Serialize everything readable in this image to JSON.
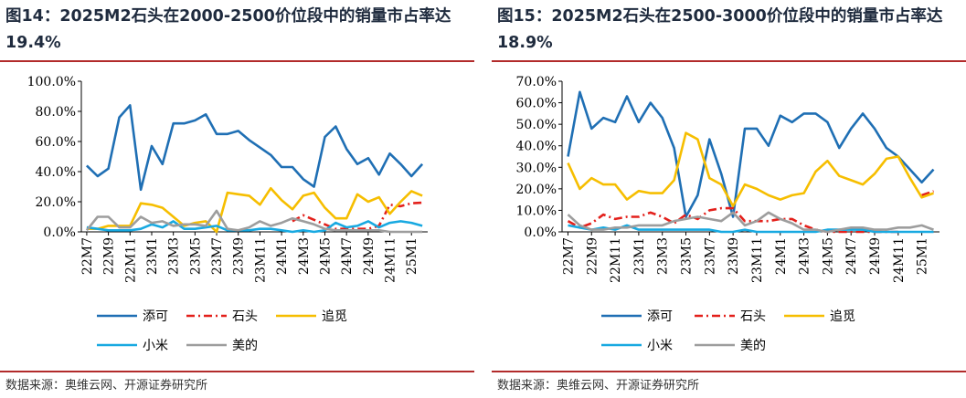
{
  "panels": [
    {
      "title": "图14：2025M2石头在2000-2500价位段中的销量市占率达 19.4%",
      "source": "数据来源：奥维云网、开源证券研究所"
    },
    {
      "title": "图15：2025M2石头在2500-3000价位段中的销量市占率达 18.9%",
      "source": "数据来源：奥维云网、开源证券研究所"
    }
  ],
  "chart_data": [
    {
      "type": "line",
      "ylim": [
        0,
        100
      ],
      "yticks": [
        "0.0%",
        "20.0%",
        "40.0%",
        "60.0%",
        "80.0%",
        "100.0%"
      ],
      "ytick_values": [
        0,
        20,
        40,
        60,
        80,
        100
      ],
      "x_tick_labels": [
        "22M7",
        "22M9",
        "22M11",
        "23M1",
        "23M3",
        "23M5",
        "23M7",
        "23M9",
        "23M11",
        "24M1",
        "24M3",
        "24M5",
        "24M7",
        "24M9",
        "24M11",
        "25M1"
      ],
      "n_points": 32,
      "series": [
        {
          "name": "添可",
          "color": "#1f6fb4",
          "dash": "solid",
          "values": [
            44,
            37,
            42,
            76,
            84,
            28,
            57,
            45,
            72,
            72,
            74,
            78,
            65,
            65,
            67,
            61,
            56,
            51,
            43,
            43,
            35,
            30,
            63,
            70,
            55,
            45,
            49,
            38,
            52,
            45,
            37,
            45
          ]
        },
        {
          "name": "石头",
          "color": "#e3201b",
          "dash": "dashdot",
          "values": [
            null,
            null,
            null,
            null,
            null,
            null,
            null,
            null,
            null,
            null,
            null,
            null,
            null,
            null,
            null,
            null,
            null,
            null,
            null,
            7,
            11,
            8,
            5,
            2,
            2,
            2,
            2,
            4,
            18,
            17,
            19,
            19.4
          ]
        },
        {
          "name": "追觅",
          "color": "#f6be00",
          "dash": "solid",
          "values": [
            2,
            2,
            4,
            4,
            4,
            19,
            18,
            16,
            10,
            4,
            6,
            7,
            0,
            26,
            25,
            24,
            18,
            29,
            21,
            15,
            24,
            26,
            16,
            9,
            9,
            25,
            20,
            23,
            12,
            20,
            27,
            24
          ]
        },
        {
          "name": "小米",
          "color": "#18a9e1",
          "dash": "solid",
          "values": [
            3,
            2,
            1,
            1,
            1,
            2,
            5,
            3,
            7,
            2,
            2,
            3,
            4,
            1,
            1,
            1,
            2,
            2,
            1,
            0,
            1,
            0,
            1,
            6,
            3,
            4,
            7,
            3,
            6,
            7,
            6,
            4
          ]
        },
        {
          "name": "美的",
          "color": "#9d9d9d",
          "dash": "solid",
          "values": [
            1,
            10,
            10,
            3,
            3,
            10,
            6,
            7,
            4,
            5,
            5,
            4,
            14,
            2,
            1,
            3,
            7,
            4,
            6,
            9,
            7,
            5,
            2,
            1,
            1,
            1,
            1,
            1,
            0,
            0,
            0,
            0
          ]
        }
      ]
    },
    {
      "type": "line",
      "ylim": [
        0,
        70
      ],
      "yticks": [
        "0.0%",
        "10.0%",
        "20.0%",
        "30.0%",
        "40.0%",
        "50.0%",
        "60.0%",
        "70.0%"
      ],
      "ytick_values": [
        0,
        10,
        20,
        30,
        40,
        50,
        60,
        70
      ],
      "x_tick_labels": [
        "22M7",
        "22M9",
        "22M11",
        "23M1",
        "23M3",
        "23M5",
        "23M7",
        "23M9",
        "23M11",
        "24M1",
        "24M3",
        "24M5",
        "24M7",
        "24M9",
        "24M11",
        "25M1"
      ],
      "n_points": 32,
      "series": [
        {
          "name": "添可",
          "color": "#1f6fb4",
          "dash": "solid",
          "values": [
            35,
            65,
            48,
            53,
            51,
            63,
            51,
            60,
            53,
            39,
            7,
            17,
            43,
            27,
            7,
            48,
            48,
            40,
            54,
            51,
            55,
            55,
            51,
            39,
            48,
            55,
            48,
            39,
            35,
            29,
            23,
            29
          ]
        },
        {
          "name": "石头",
          "color": "#e3201b",
          "dash": "dashdot",
          "values": [
            5,
            2,
            4,
            8,
            6,
            7,
            7,
            9,
            7,
            4,
            8,
            6,
            10,
            11,
            11,
            5,
            5,
            5,
            6,
            6,
            3,
            1,
            0,
            0,
            0,
            0,
            0,
            0,
            0,
            null,
            17,
            18.9
          ]
        },
        {
          "name": "追觅",
          "color": "#f6be00",
          "dash": "solid",
          "values": [
            32,
            20,
            25,
            22,
            22,
            15,
            19,
            18,
            18,
            24,
            46,
            43,
            25,
            22,
            12,
            22,
            20,
            17,
            15,
            17,
            18,
            28,
            33,
            26,
            24,
            22,
            27,
            34,
            35,
            25,
            16,
            18
          ]
        },
        {
          "name": "小米",
          "color": "#18a9e1",
          "dash": "solid",
          "values": [
            3,
            2,
            1,
            2,
            1,
            3,
            1,
            1,
            1,
            1,
            1,
            1,
            1,
            0,
            0,
            1,
            0,
            0,
            0,
            0,
            0,
            0,
            1,
            1,
            1,
            1,
            0,
            0,
            0,
            0,
            0,
            0
          ]
        },
        {
          "name": "美的",
          "color": "#9d9d9d",
          "dash": "solid",
          "values": [
            8,
            3,
            1,
            1,
            2,
            2,
            3,
            3,
            3,
            5,
            6,
            7,
            6,
            5,
            9,
            3,
            5,
            9,
            6,
            4,
            1,
            1,
            0,
            1,
            2,
            2,
            1,
            1,
            2,
            2,
            3,
            1
          ]
        }
      ]
    }
  ]
}
